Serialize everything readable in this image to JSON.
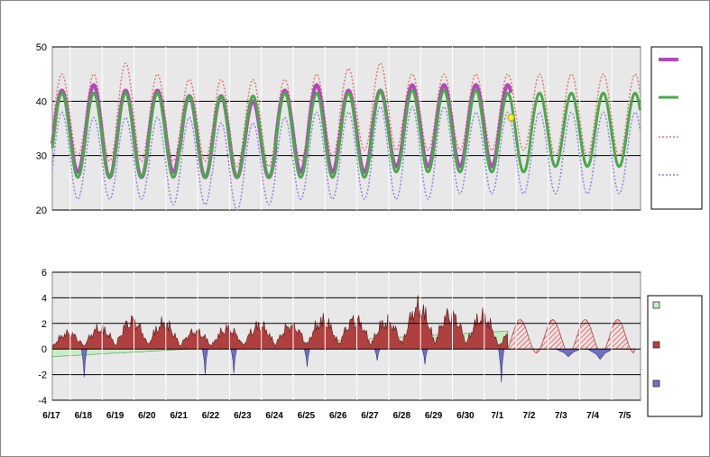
{
  "colors": {
    "plot_bg": "#e8e8e8",
    "observed_line": "#b04ab8",
    "predicted_line": "#4aa84a",
    "upper_dotted": "#e07878",
    "lower_dotted": "#8f84e0",
    "diff_green": "#c8ecc8",
    "diff_red": "#b04040",
    "diff_blue": "#7070c0",
    "marker": "#ffee33"
  },
  "chart_data": [
    {
      "type": "line",
      "y_ticks": [
        "50",
        "40",
        "30",
        "20"
      ],
      "ylim": [
        20,
        50
      ],
      "x_categories": [
        "6/17",
        "6/18",
        "6/19",
        "6/20",
        "6/21",
        "6/22",
        "6/23",
        "6/24",
        "6/25",
        "6/26",
        "6/27",
        "6/28",
        "6/29",
        "6/30",
        "7/1",
        "7/2",
        "7/3",
        "7/4",
        "7/5"
      ],
      "grid": "horizontal",
      "legend": "right",
      "series": [
        {
          "color_key": "observed_line",
          "style": "solid-thick",
          "daily_max": [
            42,
            43,
            42,
            42,
            41,
            41,
            40,
            42,
            43,
            42,
            42,
            43,
            43,
            43,
            43
          ],
          "daily_min": [
            27,
            26,
            26,
            27,
            26,
            26,
            26,
            27,
            27,
            27,
            28,
            28,
            28,
            28
          ]
        },
        {
          "color_key": "predicted_line",
          "style": "solid",
          "daily_max": [
            41.5,
            41.5,
            41.5,
            41.5,
            41,
            41,
            41,
            41.5,
            41.5,
            41.5,
            42,
            42,
            42,
            42,
            41.5,
            41.5,
            41.5,
            41.5,
            41.5
          ],
          "daily_min": [
            26,
            26,
            26,
            26,
            26,
            26,
            26,
            26,
            26,
            26,
            27,
            27,
            27,
            27,
            27,
            28,
            28,
            28,
            28
          ]
        },
        {
          "color_key": "upper_dotted",
          "style": "dotted",
          "daily_max": [
            45,
            45,
            47,
            45,
            44,
            44,
            44,
            44,
            45,
            46,
            47,
            45,
            45,
            45,
            45,
            45,
            45,
            45,
            45
          ],
          "daily_min": [
            30,
            29,
            29,
            29,
            29,
            28,
            28,
            29,
            30,
            31,
            31,
            31,
            31,
            31,
            31,
            30,
            30,
            30,
            30
          ]
        },
        {
          "color_key": "lower_dotted",
          "style": "dotted",
          "daily_max": [
            38,
            37,
            37,
            37,
            37,
            36,
            36,
            37,
            38,
            38,
            39,
            39,
            39,
            38,
            38,
            38,
            38,
            38,
            38
          ],
          "daily_min": [
            22,
            22,
            22,
            21,
            21,
            20,
            21,
            22,
            22,
            22,
            22,
            22,
            23,
            23,
            23,
            23,
            23,
            23,
            23
          ]
        }
      ],
      "current_marker": {
        "x_day": 14.4,
        "y": 37
      }
    },
    {
      "type": "area",
      "y_ticks": [
        "6",
        "4",
        "2",
        "0",
        "-2",
        "-4"
      ],
      "ylim": [
        -4,
        6
      ],
      "x_categories": [
        "6/17",
        "6/18",
        "6/19",
        "6/20",
        "6/21",
        "6/22",
        "6/23",
        "6/24",
        "6/25",
        "6/26",
        "6/27",
        "6/28",
        "6/29",
        "6/30",
        "7/1",
        "7/2",
        "7/3",
        "7/4",
        "7/5"
      ],
      "grid": "horizontal",
      "legend": "right",
      "series": [
        {
          "color_key": "diff_green",
          "start_value": -0.6,
          "end_value": 1.4
        },
        {
          "color_key": "diff_red",
          "daily_peak": [
            1.6,
            2.1,
            2.9,
            2.6,
            1.8,
            2.1,
            2.4,
            2.4,
            2.9,
            3.0,
            2.8,
            4.3,
            3.6,
            3.3,
            1.8,
            2.6,
            2.1,
            2.4,
            2.0
          ]
        },
        {
          "color_key": "diff_blue",
          "dips": [
            {
              "day": 1.0,
              "value": -2.2
            },
            {
              "day": 4.8,
              "value": -2.0
            },
            {
              "day": 5.7,
              "value": -1.9
            },
            {
              "day": 8.0,
              "value": -1.4
            },
            {
              "day": 10.2,
              "value": -0.9
            },
            {
              "day": 11.7,
              "value": -1.2
            },
            {
              "day": 14.1,
              "value": -2.6
            },
            {
              "day": 16.2,
              "value": -0.6
            },
            {
              "day": 17.2,
              "value": -0.8
            }
          ]
        }
      ]
    }
  ]
}
